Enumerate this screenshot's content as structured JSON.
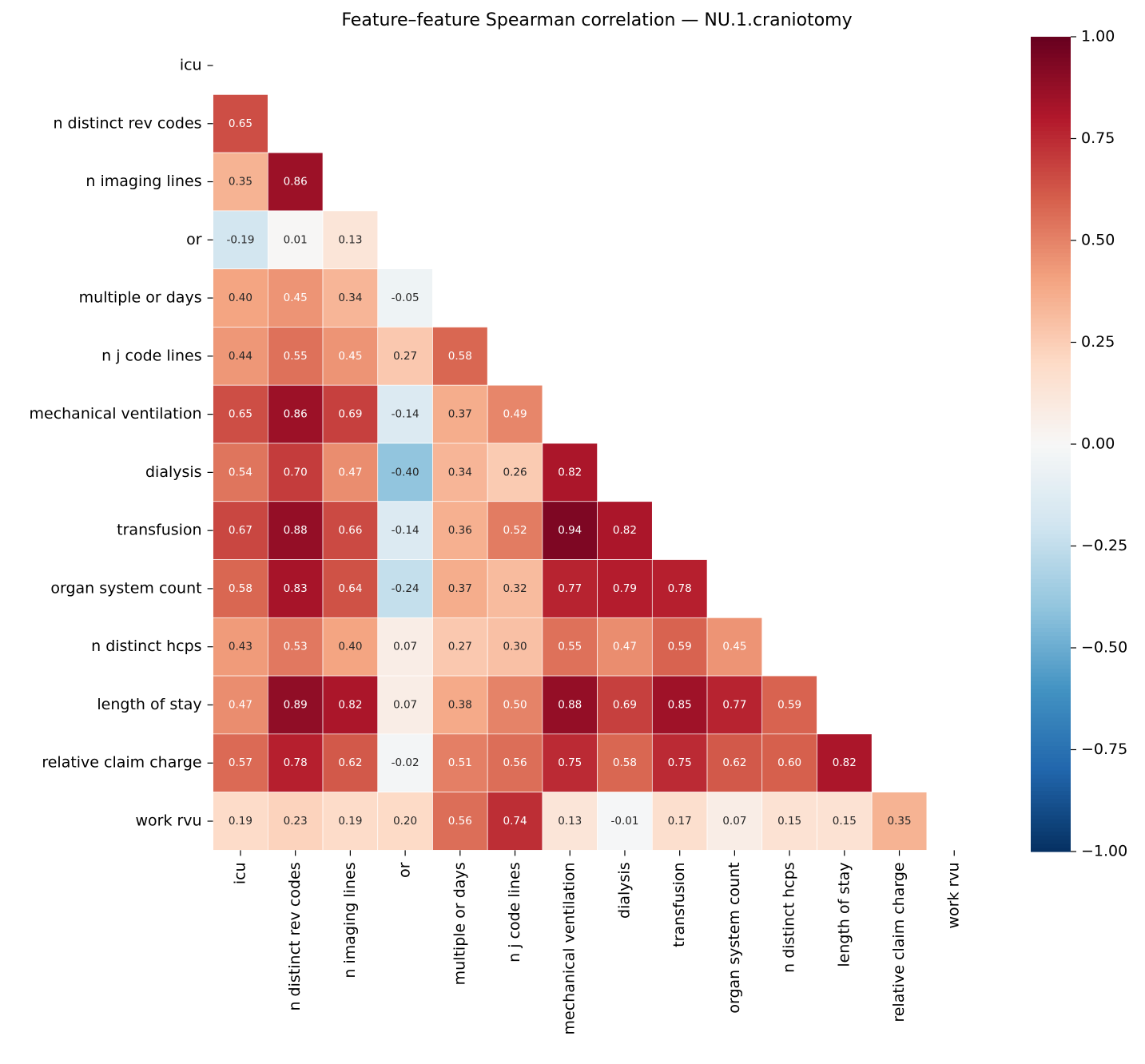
{
  "chart_data": {
    "type": "heatmap",
    "title": "Feature–feature Spearman correlation — NU.1.craniotomy",
    "categories": [
      "icu",
      "n distinct rev codes",
      "n imaging lines",
      "or",
      "multiple or days",
      "n j code lines",
      "mechanical ventilation",
      "dialysis",
      "transfusion",
      "organ system count",
      "n distinct hcps",
      "length of stay",
      "relative claim charge",
      "work rvu"
    ],
    "cmap": "RdBu_r",
    "clim": [
      -1,
      1
    ],
    "cticks": [
      {
        "value": 1,
        "label": "1.00"
      },
      {
        "value": 0.75,
        "label": "0.75"
      },
      {
        "value": 0.5,
        "label": "0.50"
      },
      {
        "value": 0.25,
        "label": "0.25"
      },
      {
        "value": 0,
        "label": "0.00"
      },
      {
        "value": -0.25,
        "label": "−0.25"
      },
      {
        "value": -0.5,
        "label": "−0.50"
      },
      {
        "value": -0.75,
        "label": "−0.75"
      },
      {
        "value": -1,
        "label": "−1.00"
      }
    ],
    "values": [
      [
        null,
        null,
        null,
        null,
        null,
        null,
        null,
        null,
        null,
        null,
        null,
        null,
        null,
        null
      ],
      [
        0.65,
        null,
        null,
        null,
        null,
        null,
        null,
        null,
        null,
        null,
        null,
        null,
        null,
        null
      ],
      [
        0.35,
        0.86,
        null,
        null,
        null,
        null,
        null,
        null,
        null,
        null,
        null,
        null,
        null,
        null
      ],
      [
        -0.19,
        0.01,
        0.13,
        null,
        null,
        null,
        null,
        null,
        null,
        null,
        null,
        null,
        null,
        null
      ],
      [
        0.4,
        0.45,
        0.34,
        -0.05,
        null,
        null,
        null,
        null,
        null,
        null,
        null,
        null,
        null,
        null
      ],
      [
        0.44,
        0.55,
        0.45,
        0.27,
        0.58,
        null,
        null,
        null,
        null,
        null,
        null,
        null,
        null,
        null
      ],
      [
        0.65,
        0.86,
        0.69,
        -0.14,
        0.37,
        0.49,
        null,
        null,
        null,
        null,
        null,
        null,
        null,
        null
      ],
      [
        0.54,
        0.7,
        0.47,
        -0.4,
        0.34,
        0.26,
        0.82,
        null,
        null,
        null,
        null,
        null,
        null,
        null
      ],
      [
        0.67,
        0.88,
        0.66,
        -0.14,
        0.36,
        0.52,
        0.94,
        0.82,
        null,
        null,
        null,
        null,
        null,
        null
      ],
      [
        0.58,
        0.83,
        0.64,
        -0.24,
        0.37,
        0.32,
        0.77,
        0.79,
        0.78,
        null,
        null,
        null,
        null,
        null
      ],
      [
        0.43,
        0.53,
        0.4,
        0.07,
        0.27,
        0.3,
        0.55,
        0.47,
        0.59,
        0.45,
        null,
        null,
        null,
        null
      ],
      [
        0.47,
        0.89,
        0.82,
        0.07,
        0.38,
        0.5,
        0.88,
        0.69,
        0.85,
        0.77,
        0.59,
        null,
        null,
        null
      ],
      [
        0.57,
        0.78,
        0.62,
        -0.02,
        0.51,
        0.56,
        0.75,
        0.58,
        0.75,
        0.62,
        0.6,
        0.82,
        null,
        null
      ],
      [
        0.19,
        0.23,
        0.19,
        0.2,
        0.56,
        0.74,
        0.13,
        -0.01,
        0.17,
        0.07,
        0.15,
        0.15,
        0.35,
        null
      ]
    ],
    "value_labels": [
      [
        null,
        null,
        null,
        null,
        null,
        null,
        null,
        null,
        null,
        null,
        null,
        null,
        null,
        null
      ],
      [
        "0.65",
        null,
        null,
        null,
        null,
        null,
        null,
        null,
        null,
        null,
        null,
        null,
        null,
        null
      ],
      [
        "0.35",
        "0.86",
        null,
        null,
        null,
        null,
        null,
        null,
        null,
        null,
        null,
        null,
        null,
        null
      ],
      [
        "-0.19",
        "0.01",
        "0.13",
        null,
        null,
        null,
        null,
        null,
        null,
        null,
        null,
        null,
        null,
        null
      ],
      [
        "0.40",
        "0.45",
        "0.34",
        "-0.05",
        null,
        null,
        null,
        null,
        null,
        null,
        null,
        null,
        null,
        null
      ],
      [
        "0.44",
        "0.55",
        "0.45",
        "0.27",
        "0.58",
        null,
        null,
        null,
        null,
        null,
        null,
        null,
        null,
        null
      ],
      [
        "0.65",
        "0.86",
        "0.69",
        "-0.14",
        "0.37",
        "0.49",
        null,
        null,
        null,
        null,
        null,
        null,
        null,
        null
      ],
      [
        "0.54",
        "0.70",
        "0.47",
        "-0.40",
        "0.34",
        "0.26",
        "0.82",
        null,
        null,
        null,
        null,
        null,
        null,
        null
      ],
      [
        "0.67",
        "0.88",
        "0.66",
        "-0.14",
        "0.36",
        "0.52",
        "0.94",
        "0.82",
        null,
        null,
        null,
        null,
        null,
        null
      ],
      [
        "0.58",
        "0.83",
        "0.64",
        "-0.24",
        "0.37",
        "0.32",
        "0.77",
        "0.79",
        "0.78",
        null,
        null,
        null,
        null,
        null
      ],
      [
        "0.43",
        "0.53",
        "0.40",
        "0.07",
        "0.27",
        "0.30",
        "0.55",
        "0.47",
        "0.59",
        "0.45",
        null,
        null,
        null,
        null
      ],
      [
        "0.47",
        "0.89",
        "0.82",
        "0.07",
        "0.38",
        "0.50",
        "0.88",
        "0.69",
        "0.85",
        "0.77",
        "0.59",
        null,
        null,
        null
      ],
      [
        "0.57",
        "0.78",
        "0.62",
        "-0.02",
        "0.51",
        "0.56",
        "0.75",
        "0.58",
        "0.75",
        "0.62",
        "0.60",
        "0.82",
        null,
        null
      ],
      [
        "0.19",
        "0.23",
        "0.19",
        "0.20",
        "0.56",
        "0.74",
        "0.13",
        "-0.01",
        "0.17",
        "0.07",
        "0.15",
        "0.15",
        "0.35",
        null
      ]
    ]
  }
}
